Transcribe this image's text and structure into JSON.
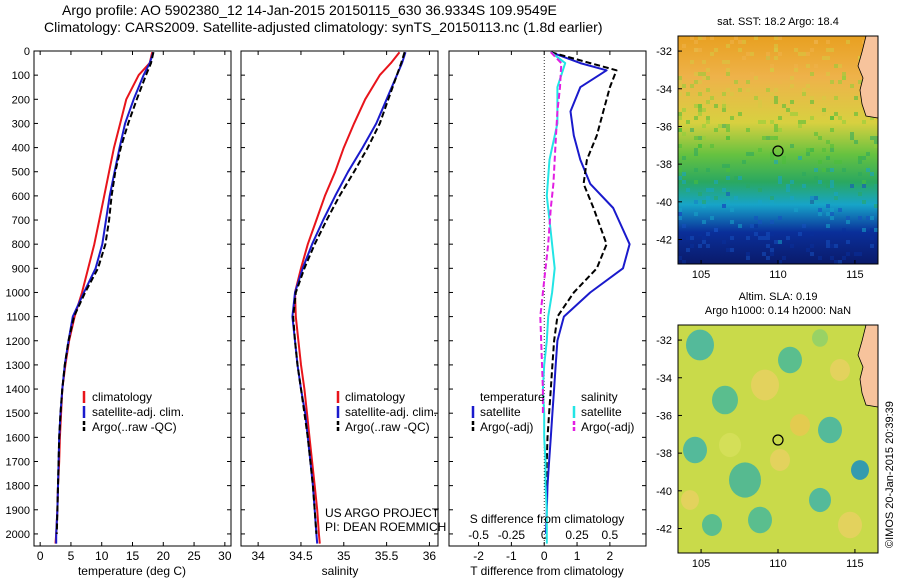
{
  "header": {
    "line1": "Argo profile: AO 5902380_12 14-Jan-2015 20150115_630 36.9334S 109.9549E",
    "line2": "Climatology: CARS2009. Satellite-adjusted climatology: synTS_20150113.nc (1.8d earlier)"
  },
  "credits": {
    "project": "US ARGO PROJECT",
    "pi": "PI: DEAN ROEMMICH",
    "imos": "©IMOS 20-Jan-2015 20:39:39"
  },
  "colors": {
    "climatology": "#e8141b",
    "satellite": "#1a1acc",
    "argo": "#000000",
    "satellite_salinity": "#22e5e5",
    "argo_salinity": "#e21ee2",
    "land": "#f7c39c"
  },
  "chart_data": [
    {
      "type": "line",
      "xlabel": "temperature (deg C)",
      "ylabel": "",
      "xlim": [
        -1,
        31
      ],
      "ylim": [
        2050,
        0
      ],
      "x_ticks": [
        "0",
        "5",
        "10",
        "15",
        "20",
        "25",
        "30"
      ],
      "y_ticks": [
        "0",
        "100",
        "200",
        "300",
        "400",
        "500",
        "600",
        "700",
        "800",
        "900",
        "1000",
        "1100",
        "1200",
        "1300",
        "1400",
        "1500",
        "1600",
        "1700",
        "1800",
        "1900",
        "2000"
      ],
      "legend": {
        "position": "center-left",
        "entries": [
          "climatology",
          "satellite-adj. clim.",
          "Argo(..raw -QC)"
        ]
      },
      "series": [
        {
          "name": "climatology",
          "style": "solid",
          "color": "#e8141b",
          "x": [
            18.2,
            17.8,
            16,
            14,
            13,
            12,
            11.2,
            10.4,
            9.6,
            8.8,
            7.8,
            6.8,
            5.6,
            4.7,
            4.1,
            3.6,
            3.4,
            3.2,
            3.1,
            2.9,
            2.8,
            2.6,
            2.5
          ],
          "y": [
            5,
            50,
            100,
            200,
            300,
            400,
            500,
            600,
            700,
            800,
            900,
            1000,
            1100,
            1200,
            1300,
            1400,
            1500,
            1600,
            1700,
            1800,
            1900,
            2000,
            2040
          ]
        },
        {
          "name": "satellite-adj. clim.",
          "style": "solid",
          "color": "#1a1acc",
          "x": [
            18.4,
            17.8,
            16.8,
            15.2,
            13.8,
            12.9,
            12.1,
            11.3,
            10.7,
            10.1,
            9.0,
            7.1,
            5.3,
            4.6,
            4.0,
            3.6,
            3.3,
            3.1,
            3.0,
            2.9,
            2.8,
            2.6,
            2.6
          ],
          "y": [
            5,
            50,
            100,
            200,
            300,
            400,
            500,
            600,
            700,
            800,
            900,
            1000,
            1100,
            1200,
            1300,
            1400,
            1500,
            1600,
            1700,
            1800,
            1900,
            2000,
            2040
          ]
        },
        {
          "name": "Argo(..raw -QC)",
          "style": "dashed",
          "color": "#000000",
          "x": [
            18.4,
            18.0,
            17.2,
            15.7,
            14.3,
            13.1,
            12.2,
            11.6,
            11.2,
            10.6,
            9.4,
            7.3,
            5.5,
            4.6,
            4.0,
            3.6,
            3.3,
            3.1,
            3.0,
            2.9,
            2.8,
            2.7
          ],
          "y": [
            5,
            50,
            100,
            200,
            300,
            400,
            500,
            600,
            700,
            800,
            900,
            1000,
            1100,
            1200,
            1300,
            1400,
            1500,
            1600,
            1700,
            1800,
            1900,
            2000
          ]
        }
      ]
    },
    {
      "type": "line",
      "xlabel": "salinity",
      "ylabel": "",
      "xlim": [
        33.8,
        36.1
      ],
      "ylim": [
        2050,
        0
      ],
      "x_ticks": [
        "34",
        "34.5",
        "35",
        "35.5",
        "36"
      ],
      "legend": {
        "position": "center-right",
        "entries": [
          "climatology",
          "satellite-adj. clim.",
          "Argo(..raw -QC)"
        ]
      },
      "series": [
        {
          "name": "climatology",
          "style": "solid",
          "color": "#e8141b",
          "x": [
            35.65,
            35.55,
            35.42,
            35.25,
            35.12,
            35.0,
            34.9,
            34.78,
            34.68,
            34.58,
            34.5,
            34.43,
            34.44,
            34.47,
            34.5,
            34.54,
            34.57,
            34.6,
            34.63,
            34.66,
            34.69,
            34.71,
            34.72
          ],
          "y": [
            5,
            50,
            100,
            200,
            300,
            400,
            500,
            600,
            700,
            800,
            900,
            1000,
            1100,
            1200,
            1300,
            1400,
            1500,
            1600,
            1700,
            1800,
            1900,
            2000,
            2040
          ]
        },
        {
          "name": "satellite-adj. clim.",
          "style": "solid",
          "color": "#1a1acc",
          "x": [
            35.72,
            35.68,
            35.62,
            35.5,
            35.38,
            35.22,
            35.05,
            34.9,
            34.76,
            34.63,
            34.52,
            34.43,
            34.4,
            34.43,
            34.46,
            34.5,
            34.55,
            34.58,
            34.61,
            34.64,
            34.66,
            34.68,
            34.69
          ],
          "y": [
            5,
            50,
            100,
            200,
            300,
            400,
            500,
            600,
            700,
            800,
            900,
            1000,
            1100,
            1200,
            1300,
            1400,
            1500,
            1600,
            1700,
            1800,
            1900,
            2000,
            2040
          ]
        },
        {
          "name": "Argo(..raw -QC)",
          "style": "dashed",
          "color": "#000000",
          "x": [
            35.71,
            35.67,
            35.62,
            35.52,
            35.42,
            35.28,
            35.12,
            34.95,
            34.8,
            34.66,
            34.54,
            34.44,
            34.41,
            34.43,
            34.46,
            34.5,
            34.54,
            34.58,
            34.61,
            34.64,
            34.66,
            34.68
          ],
          "y": [
            5,
            50,
            100,
            200,
            300,
            400,
            500,
            600,
            700,
            800,
            900,
            1000,
            1100,
            1200,
            1300,
            1400,
            1500,
            1600,
            1700,
            1800,
            1900,
            2000
          ]
        }
      ]
    },
    {
      "type": "line",
      "title": "",
      "xlabel": "T difference from climatology",
      "top_xlabel": "S difference from climatology",
      "xlim": [
        -2.9,
        3.1
      ],
      "ylim": [
        2050,
        0
      ],
      "x_ticks": [
        "-2",
        "-1",
        "0",
        "1",
        "2"
      ],
      "top_x_ticks": [
        "-0.5",
        "-0.25",
        "0",
        "0.25",
        "0.5"
      ],
      "zero_line": "dotted",
      "legend": {
        "position": "bottom-center",
        "groups": {
          "temperature": [
            "satellite",
            "Argo(-adj)"
          ],
          "salinity": [
            "satellite",
            "Argo(-adj)"
          ]
        }
      },
      "series": [
        {
          "name": "temperature satellite",
          "style": "solid",
          "color": "#1a1acc",
          "x": [
            0.2,
            1.1,
            1.9,
            1.1,
            0.8,
            0.9,
            1.1,
            1.4,
            2.1,
            2.6,
            2.4,
            1.4,
            0.6,
            0.4,
            0.35,
            0.3,
            0.25,
            0.2,
            0.15,
            0.1,
            0.08,
            0.05
          ],
          "y": [
            5,
            50,
            80,
            150,
            250,
            350,
            450,
            550,
            650,
            800,
            900,
            1000,
            1100,
            1200,
            1300,
            1400,
            1500,
            1600,
            1700,
            1800,
            1900,
            2000
          ]
        },
        {
          "name": "temperature Argo(-adj)",
          "style": "dashed",
          "color": "#000000",
          "x": [
            0.2,
            1.4,
            2.2,
            2.0,
            1.8,
            1.6,
            1.3,
            1.2,
            1.5,
            1.9,
            1.6,
            0.9,
            0.4,
            0.3,
            0.25,
            0.2,
            0.15,
            0.1,
            0.08,
            0.05
          ],
          "y": [
            5,
            50,
            80,
            150,
            250,
            350,
            450,
            550,
            650,
            800,
            900,
            1000,
            1100,
            1200,
            1300,
            1400,
            1500,
            1600,
            1700,
            1800
          ]
        },
        {
          "name": "salinity satellite",
          "style": "solid",
          "color": "#22e5e5",
          "x": [
            0.05,
            0.16,
            0.1,
            0.1,
            0.04,
            0.02,
            0.04,
            0.06,
            0.08,
            0.06,
            0.03,
            0.02,
            0.0,
            -0.01,
            0.0,
            0.0,
            0.01,
            0.01,
            0.02,
            0.02,
            0.02
          ],
          "y": [
            5,
            50,
            150,
            300,
            450,
            600,
            700,
            800,
            900,
            1000,
            1100,
            1200,
            1300,
            1400,
            1500,
            1600,
            1700,
            1800,
            1900,
            2000,
            2040
          ]
        },
        {
          "name": "salinity Argo(-adj)",
          "style": "dashed",
          "color": "#e21ee2",
          "x": [
            0.05,
            0.13,
            0.12,
            0.1,
            0.09,
            0.08,
            0.07,
            0.05,
            0.03,
            0.0,
            -0.03,
            -0.02,
            -0.01,
            -0.01
          ],
          "y": [
            5,
            50,
            150,
            250,
            350,
            450,
            550,
            650,
            800,
            950,
            1100,
            1250,
            1400,
            1500
          ]
        }
      ]
    },
    {
      "type": "heatmap",
      "title": "sat. SST: 18.2  Argo: 18.4",
      "field": "sea surface temperature",
      "x_ticks": [
        "105",
        "110",
        "115"
      ],
      "y_ticks": [
        "-32",
        "-34",
        "-36",
        "-38",
        "-40",
        "-42"
      ],
      "xlim": [
        103.5,
        116.5
      ],
      "ylim": [
        -43.3,
        -31.2
      ],
      "marker": {
        "lon": 109.95,
        "lat": -36.93
      }
    },
    {
      "type": "heatmap",
      "title": "Altim. SLA: 0.19\nArgo h1000: 0.14 h2000: NaN",
      "title_lines": [
        "Altim. SLA: 0.19",
        "Argo h1000: 0.14 h2000: NaN"
      ],
      "field": "sea level anomaly",
      "x_ticks": [
        "105",
        "110",
        "115"
      ],
      "y_ticks": [
        "-32",
        "-34",
        "-36",
        "-38",
        "-40",
        "-42"
      ],
      "xlim": [
        103.5,
        116.5
      ],
      "ylim": [
        -43.3,
        -31.2
      ],
      "marker": {
        "lon": 109.95,
        "lat": -36.93
      }
    }
  ]
}
